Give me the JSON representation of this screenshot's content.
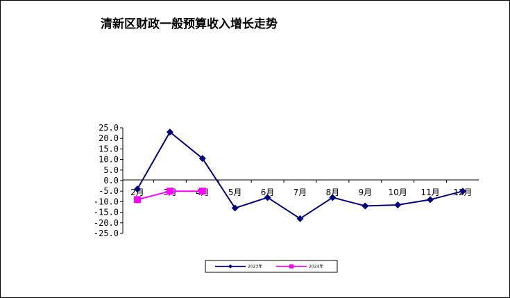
{
  "chart_data": {
    "type": "line",
    "title": "清新区财政一般预算收入增长走势",
    "categories": [
      "2月",
      "3月",
      "4月",
      "5月",
      "6月",
      "7月",
      "8月",
      "9月",
      "10月",
      "11月",
      "12月"
    ],
    "y_ticks": [
      "25.0",
      "20.0",
      "15.0",
      "10.0",
      "5.0",
      "0.0",
      "-5.0",
      "-10.0",
      "-15.0",
      "-20.0",
      "-25.0"
    ],
    "ylim": [
      -25,
      25
    ],
    "grid": false,
    "legend_position": "bottom",
    "series": [
      {
        "name": "2023年",
        "color": "#000080",
        "marker": "diamond",
        "values": [
          -4,
          23,
          10.5,
          -13,
          -8,
          -18,
          -8,
          -12,
          -11.5,
          -9,
          -5
        ]
      },
      {
        "name": "2024年",
        "color": "#ff00ff",
        "marker": "square",
        "values": [
          -9,
          -5,
          -5,
          null,
          null,
          null,
          null,
          null,
          null,
          null,
          null
        ]
      }
    ]
  }
}
